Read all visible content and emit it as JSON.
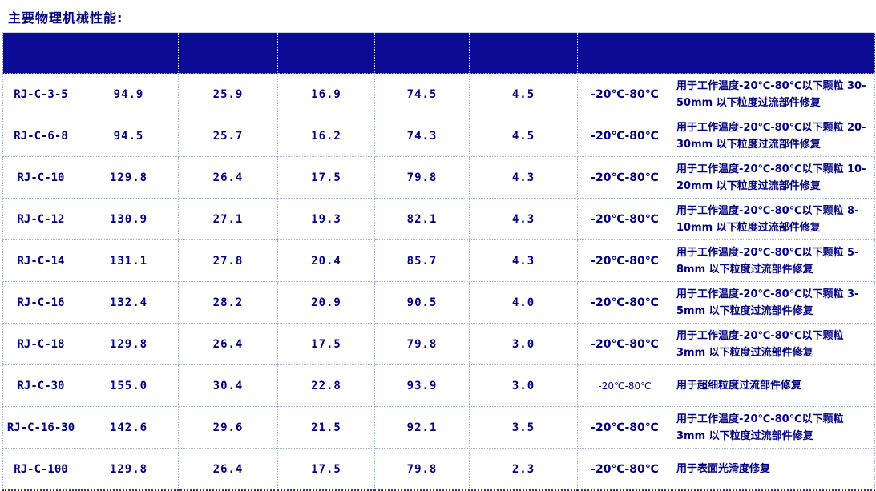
{
  "page": {
    "title": "主要物理机械性能:"
  },
  "colors": {
    "header_background": "#0b0b96",
    "text_navy": "#000080",
    "title_navy": "#00007d",
    "border_dotted": "#a3b5d2"
  },
  "table": {
    "header_cells": [
      "",
      "",
      "",
      "",
      "",
      "",
      "",
      ""
    ],
    "rows": [
      {
        "model": "RJ-C-3-5",
        "values": [
          "94.9",
          "25.9",
          "16.9",
          "74.5",
          "4.5"
        ],
        "temp": "-20℃-80℃",
        "temp_small": false,
        "description": "用于工作温度-20℃-80℃以下颗粒 30-50mm 以下粒度过流部件修复"
      },
      {
        "model": "RJ-C-6-8",
        "values": [
          "94.5",
          "25.7",
          "16.2",
          "74.3",
          "4.5"
        ],
        "temp": "-20℃-80℃",
        "temp_small": false,
        "description": "用于工作温度-20℃-80℃以下颗粒 20-30mm 以下粒度过流部件修复"
      },
      {
        "model": "RJ-C-10",
        "values": [
          "129.8",
          "26.4",
          "17.5",
          "79.8",
          "4.3"
        ],
        "temp": "-20℃-80℃",
        "temp_small": false,
        "description": "用于工作温度-20℃-80℃以下颗粒 10-20mm 以下粒度过流部件修复"
      },
      {
        "model": "RJ-C-12",
        "values": [
          "130.9",
          "27.1",
          "19.3",
          "82.1",
          "4.3"
        ],
        "temp": "-20℃-80℃",
        "temp_small": false,
        "description": "用于工作温度-20℃-80℃以下颗粒 8-10mm 以下粒度过流部件修复"
      },
      {
        "model": "RJ-C-14",
        "values": [
          "131.1",
          "27.8",
          "20.4",
          "85.7",
          "4.3"
        ],
        "temp": "-20℃-80℃",
        "temp_small": false,
        "description": "用于工作温度-20℃-80℃以下颗粒 5-8mm 以下粒度过流部件修复"
      },
      {
        "model": "RJ-C-16",
        "values": [
          "132.4",
          "28.2",
          "20.9",
          "90.5",
          "4.0"
        ],
        "temp": "-20℃-80℃",
        "temp_small": false,
        "description": "用于工作温度-20℃-80℃以下颗粒 3-5mm 以下粒度过流部件修复"
      },
      {
        "model": "RJ-C-18",
        "values": [
          "129.8",
          "26.4",
          "17.5",
          "79.8",
          "3.0"
        ],
        "temp": "-20℃-80℃",
        "temp_small": false,
        "description": "用于工作温度-20℃-80℃以下颗粒 3mm 以下粒度过流部件修复"
      },
      {
        "model": "RJ-C-30",
        "values": [
          "155.0",
          "30.4",
          "22.8",
          "93.9",
          "3.0"
        ],
        "temp": "-20℃-80℃",
        "temp_small": true,
        "description": "用于超细粒度过流部件修复"
      },
      {
        "model": "RJ-C-16-30",
        "values": [
          "142.6",
          "29.6",
          "21.5",
          "92.1",
          "3.5"
        ],
        "temp": "-20℃-80℃",
        "temp_small": false,
        "description": "用于工作温度-20℃-80℃以下颗粒 3mm 以下粒度过流部件修复"
      },
      {
        "model": "RJ-C-100",
        "values": [
          "129.8",
          "26.4",
          "17.5",
          "79.8",
          "2.3"
        ],
        "temp": "-20℃-80℃",
        "temp_small": false,
        "description": "用于表面光滑度修复"
      }
    ]
  }
}
